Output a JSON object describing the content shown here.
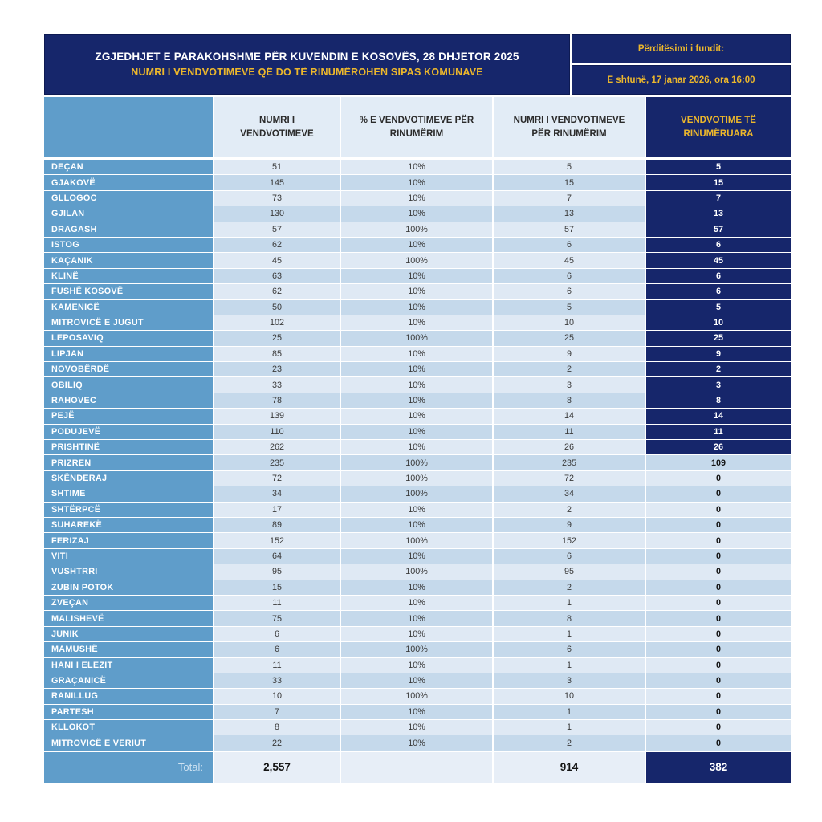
{
  "header": {
    "title": "ZGJEDHJET E PARAKOHSHME PËR KUVENDIN E KOSOVËS, 28 DHJETOR 2025",
    "subtitle": "NUMRI I VENDVOTIMEVE QË DO TË RINUMËROHEN SIPAS KOMUNAVE",
    "last_update_label": "Përditësimi i fundit:",
    "last_update_value": "E shtunë, 17 janar 2026, ora 16:00"
  },
  "columns": {
    "municipality": "",
    "total_stations": "NUMRI I VENDVOTIMEVE",
    "pct_recount": "% E VENDVOTIMEVE PËR RINUMËRIM",
    "stations_recount": "NUMRI I VENDVOTIMEVE PËR RINUMËRIM",
    "recounted": "VENDVOTIME TË RINUMËRUARA"
  },
  "table": {
    "recounted_dark_rows": 19,
    "rows": [
      {
        "name": "DEÇAN",
        "total": "51",
        "pct": "10%",
        "recount": "5",
        "recounted": "5"
      },
      {
        "name": "GJAKOVË",
        "total": "145",
        "pct": "10%",
        "recount": "15",
        "recounted": "15"
      },
      {
        "name": "GLLOGOC",
        "total": "73",
        "pct": "10%",
        "recount": "7",
        "recounted": "7"
      },
      {
        "name": "GJILAN",
        "total": "130",
        "pct": "10%",
        "recount": "13",
        "recounted": "13"
      },
      {
        "name": "DRAGASH",
        "total": "57",
        "pct": "100%",
        "recount": "57",
        "recounted": "57"
      },
      {
        "name": "ISTOG",
        "total": "62",
        "pct": "10%",
        "recount": "6",
        "recounted": "6"
      },
      {
        "name": "KAÇANIK",
        "total": "45",
        "pct": "100%",
        "recount": "45",
        "recounted": "45"
      },
      {
        "name": "KLINË",
        "total": "63",
        "pct": "10%",
        "recount": "6",
        "recounted": "6"
      },
      {
        "name": "FUSHË KOSOVË",
        "total": "62",
        "pct": "10%",
        "recount": "6",
        "recounted": "6"
      },
      {
        "name": "KAMENICË",
        "total": "50",
        "pct": "10%",
        "recount": "5",
        "recounted": "5"
      },
      {
        "name": "MITROVICË E JUGUT",
        "total": "102",
        "pct": "10%",
        "recount": "10",
        "recounted": "10"
      },
      {
        "name": "LEPOSAVIQ",
        "total": "25",
        "pct": "100%",
        "recount": "25",
        "recounted": "25"
      },
      {
        "name": "LIPJAN",
        "total": "85",
        "pct": "10%",
        "recount": "9",
        "recounted": "9"
      },
      {
        "name": "NOVOBËRDË",
        "total": "23",
        "pct": "10%",
        "recount": "2",
        "recounted": "2"
      },
      {
        "name": "OBILIQ",
        "total": "33",
        "pct": "10%",
        "recount": "3",
        "recounted": "3"
      },
      {
        "name": "RAHOVEC",
        "total": "78",
        "pct": "10%",
        "recount": "8",
        "recounted": "8"
      },
      {
        "name": "PEJË",
        "total": "139",
        "pct": "10%",
        "recount": "14",
        "recounted": "14"
      },
      {
        "name": "PODUJEVË",
        "total": "110",
        "pct": "10%",
        "recount": "11",
        "recounted": "11"
      },
      {
        "name": "PRISHTINË",
        "total": "262",
        "pct": "10%",
        "recount": "26",
        "recounted": "26"
      },
      {
        "name": "PRIZREN",
        "total": "235",
        "pct": "100%",
        "recount": "235",
        "recounted": "109"
      },
      {
        "name": "SKËNDERAJ",
        "total": "72",
        "pct": "100%",
        "recount": "72",
        "recounted": "0"
      },
      {
        "name": "SHTIME",
        "total": "34",
        "pct": "100%",
        "recount": "34",
        "recounted": "0"
      },
      {
        "name": "SHTËRPCË",
        "total": "17",
        "pct": "10%",
        "recount": "2",
        "recounted": "0"
      },
      {
        "name": "SUHAREKË",
        "total": "89",
        "pct": "10%",
        "recount": "9",
        "recounted": "0"
      },
      {
        "name": "FERIZAJ",
        "total": "152",
        "pct": "100%",
        "recount": "152",
        "recounted": "0"
      },
      {
        "name": "VITI",
        "total": "64",
        "pct": "10%",
        "recount": "6",
        "recounted": "0"
      },
      {
        "name": "VUSHTRRI",
        "total": "95",
        "pct": "100%",
        "recount": "95",
        "recounted": "0"
      },
      {
        "name": "ZUBIN POTOK",
        "total": "15",
        "pct": "10%",
        "recount": "2",
        "recounted": "0"
      },
      {
        "name": "ZVEÇAN",
        "total": "11",
        "pct": "10%",
        "recount": "1",
        "recounted": "0"
      },
      {
        "name": "MALISHEVË",
        "total": "75",
        "pct": "10%",
        "recount": "8",
        "recounted": "0"
      },
      {
        "name": "JUNIK",
        "total": "6",
        "pct": "10%",
        "recount": "1",
        "recounted": "0"
      },
      {
        "name": "MAMUSHË",
        "total": "6",
        "pct": "100%",
        "recount": "6",
        "recounted": "0"
      },
      {
        "name": "HANI I ELEZIT",
        "total": "11",
        "pct": "10%",
        "recount": "1",
        "recounted": "0"
      },
      {
        "name": "GRAÇANICË",
        "total": "33",
        "pct": "10%",
        "recount": "3",
        "recounted": "0"
      },
      {
        "name": "RANILLUG",
        "total": "10",
        "pct": "100%",
        "recount": "10",
        "recounted": "0"
      },
      {
        "name": "PARTESH",
        "total": "7",
        "pct": "10%",
        "recount": "1",
        "recounted": "0"
      },
      {
        "name": "KLLOKOT",
        "total": "8",
        "pct": "10%",
        "recount": "1",
        "recounted": "0"
      },
      {
        "name": "MITROVICË E VERIUT",
        "total": "22",
        "pct": "10%",
        "recount": "2",
        "recounted": "0"
      }
    ]
  },
  "total": {
    "label": "Total:",
    "total_stations": "2,557",
    "pct_recount": "",
    "stations_recount": "914",
    "recounted": "382"
  },
  "colors": {
    "navy": "#16266b",
    "gold": "#ecb72c",
    "municipality_blue": "#5f9dca",
    "row_light": "#dfe9f4",
    "row_dark": "#c5d9eb"
  }
}
